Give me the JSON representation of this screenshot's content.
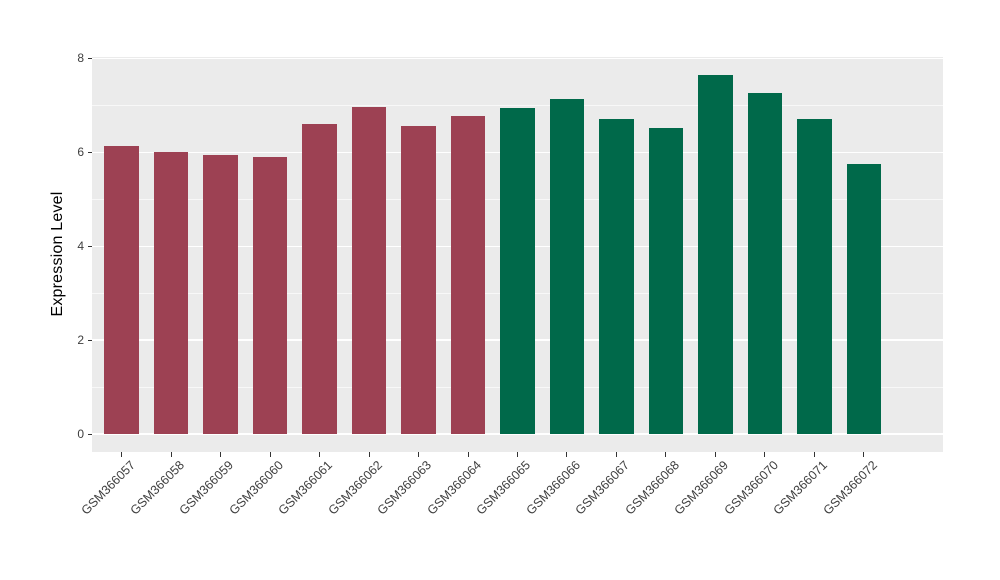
{
  "chart_data": {
    "type": "bar",
    "title": "",
    "xlabel": "",
    "ylabel": "Expression Level",
    "categories": [
      "GSM366057",
      "GSM366058",
      "GSM366059",
      "GSM366060",
      "GSM366061",
      "GSM366062",
      "GSM366063",
      "GSM366064",
      "GSM366065",
      "GSM366066",
      "GSM366067",
      "GSM366068",
      "GSM366069",
      "GSM366070",
      "GSM366071",
      "GSM366072"
    ],
    "values": [
      6.13,
      6.0,
      5.95,
      5.9,
      6.6,
      6.97,
      6.56,
      6.78,
      6.94,
      7.13,
      6.72,
      6.51,
      7.65,
      7.27,
      6.71,
      5.75
    ],
    "bar_colors": [
      "#9D4153",
      "#9D4153",
      "#9D4153",
      "#9D4153",
      "#9D4153",
      "#9D4153",
      "#9D4153",
      "#9D4153",
      "#00694A",
      "#00694A",
      "#00694A",
      "#00694A",
      "#00694A",
      "#00694A",
      "#00694A",
      "#00694A"
    ],
    "groups": [
      {
        "samples": "GSM366057-GSM366064",
        "color": "#9D4153"
      },
      {
        "samples": "GSM366065-GSM366072",
        "color": "#00694A"
      }
    ],
    "y_ticks": [
      0,
      2,
      4,
      6,
      8
    ],
    "y_minor_ticks": [
      1,
      3,
      5,
      7
    ],
    "ylim": [
      -0.38,
      8.03
    ],
    "grid": true,
    "legend": "none",
    "colors": {
      "panel_background": "#EBEBEB",
      "gridline": "#FFFFFF",
      "axis_text": "#3E3E3E",
      "tick_mark": "#333333"
    }
  }
}
